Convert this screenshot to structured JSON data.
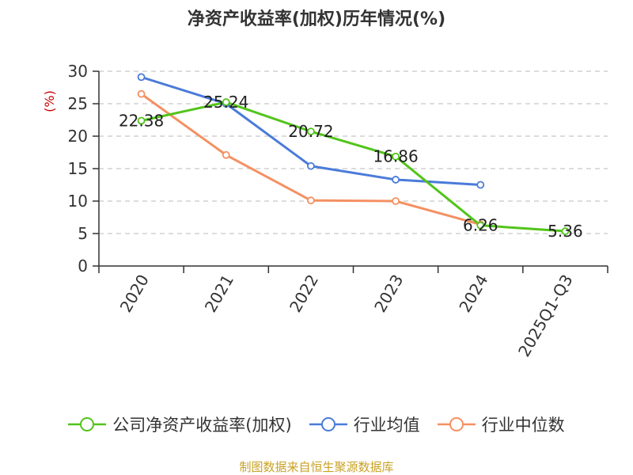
{
  "chart_data": {
    "type": "line",
    "title": "净资产收益率(加权)历年情况(%)",
    "ylabel": "(%)",
    "xlabel": "",
    "categories": [
      "2020",
      "2021",
      "2022",
      "2023",
      "2024",
      "2025Q1-Q3"
    ],
    "ylim": [
      0,
      30
    ],
    "yticks": [
      0,
      5,
      10,
      15,
      20,
      25,
      30
    ],
    "grid": true,
    "legend_position": "bottom",
    "series": [
      {
        "name": "公司净资产收益率(加权)",
        "color": "#52c41a",
        "values": [
          22.38,
          25.24,
          20.72,
          16.86,
          6.26,
          5.36
        ],
        "show_labels": true
      },
      {
        "name": "行业均值",
        "color": "#4a7bd9",
        "values": [
          29.1,
          25.0,
          15.4,
          13.3,
          12.5,
          null
        ],
        "show_labels": false
      },
      {
        "name": "行业中位数",
        "color": "#f59062",
        "values": [
          26.5,
          17.1,
          10.1,
          10.0,
          6.4,
          null
        ],
        "show_labels": false
      }
    ],
    "data_labels": [
      "22.38",
      "25.24",
      "20.72",
      "16.86",
      "6.26",
      "5.36"
    ]
  },
  "source": "制图数据来自恒生聚源数据库"
}
